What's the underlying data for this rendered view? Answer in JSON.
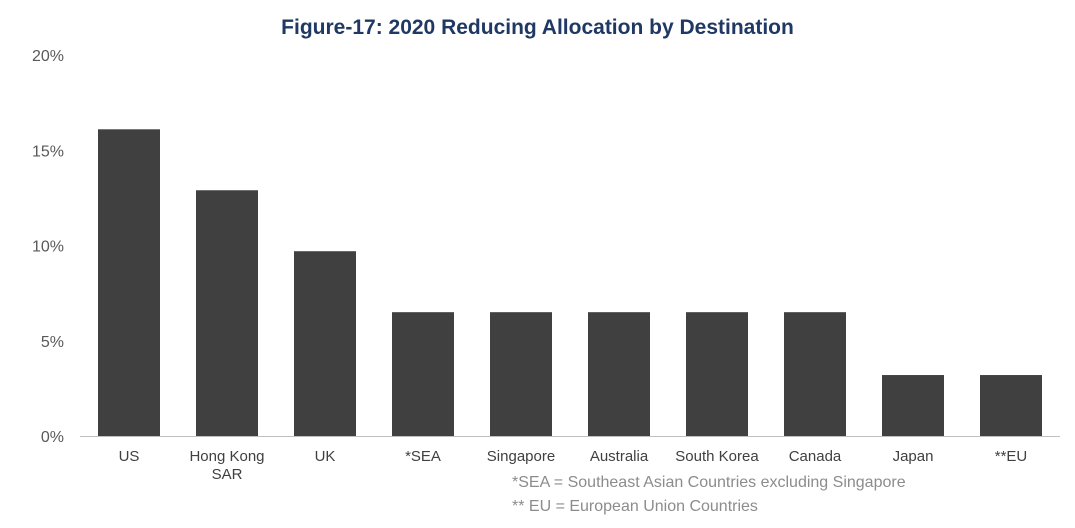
{
  "chart_data": {
    "type": "bar",
    "title": "Figure-17: 2020 Reducing Allocation by Destination",
    "categories": [
      "US",
      "Hong Kong SAR",
      "UK",
      "*SEA",
      "Singapore",
      "Australia",
      "South Korea",
      "Canada",
      "Japan",
      "**EU"
    ],
    "values": [
      16.1,
      12.9,
      9.7,
      6.5,
      6.5,
      6.5,
      6.5,
      6.5,
      3.2,
      3.2
    ],
    "unit": "%",
    "xlabel": "",
    "ylabel": "",
    "ylim": [
      0,
      20
    ],
    "yticks": [
      "0%",
      "5%",
      "10%",
      "15%",
      "20%"
    ],
    "grid": false,
    "bar_color": "#404040",
    "title_color": "#1f3864",
    "footnotes": [
      "*SEA = Southeast Asian Countries excluding Singapore",
      "** EU = European Union Countries"
    ]
  }
}
